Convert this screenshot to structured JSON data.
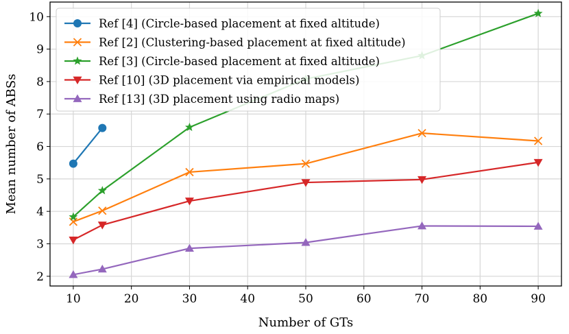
{
  "chart_data": {
    "type": "line",
    "xlabel": "Number of GTs",
    "ylabel": "Mean number of ABSs",
    "xlim": [
      6,
      94
    ],
    "ylim": [
      1.7,
      10.45
    ],
    "xticks": [
      10,
      20,
      30,
      40,
      50,
      60,
      70,
      80,
      90
    ],
    "yticks": [
      2,
      3,
      4,
      5,
      6,
      7,
      8,
      9,
      10
    ],
    "grid": true,
    "legend_position": "top-left",
    "series": [
      {
        "name": "Ref [4] (Circle-based placement at fixed altitude)",
        "color": "#1f77b4",
        "marker": "circle",
        "x": [
          10,
          15
        ],
        "y": [
          5.47,
          6.57
        ]
      },
      {
        "name": "Ref [2] (Clustering-based placement at fixed altitude)",
        "color": "#ff7f0e",
        "marker": "x",
        "x": [
          10,
          15,
          30,
          50,
          70,
          90
        ],
        "y": [
          3.68,
          4.02,
          5.21,
          5.47,
          6.41,
          6.17
        ]
      },
      {
        "name": "Ref [3] (Circle-based placement at fixed altitude)",
        "color": "#2ca02c",
        "marker": "star",
        "x": [
          10,
          15,
          30,
          50,
          70,
          90
        ],
        "y": [
          3.83,
          4.64,
          6.59,
          8.08,
          8.8,
          10.1
        ]
      },
      {
        "name": "Ref [10] (3D placement via empirical models)",
        "color": "#d62728",
        "marker": "triangle-down",
        "x": [
          10,
          15,
          30,
          50,
          70,
          90
        ],
        "y": [
          3.12,
          3.58,
          4.32,
          4.89,
          4.98,
          5.51
        ]
      },
      {
        "name": "Ref [13] (3D placement using radio maps)",
        "color": "#9467bd",
        "marker": "triangle-up",
        "x": [
          10,
          15,
          30,
          50,
          70,
          90
        ],
        "y": [
          2.05,
          2.22,
          2.86,
          3.04,
          3.55,
          3.54
        ]
      }
    ]
  }
}
